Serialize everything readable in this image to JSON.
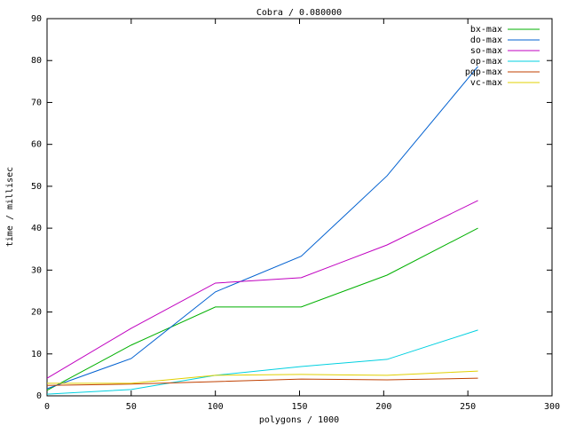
{
  "chart_data": {
    "type": "line",
    "title": "Cobra / 0.080000",
    "x_label": "polygons / 1000",
    "y_label": "time / millisec",
    "x": [
      0,
      50,
      100,
      151,
      202,
      256
    ],
    "series": [
      {
        "name": "bx-max",
        "color": "#00b000",
        "values": [
          1.3,
          12.1,
          21.2,
          21.2,
          28.8,
          40.0
        ]
      },
      {
        "name": "do-max",
        "color": "#0060d0",
        "values": [
          1.7,
          8.9,
          24.8,
          33.3,
          52.5,
          78.6
        ]
      },
      {
        "name": "so-max",
        "color": "#c000c0",
        "values": [
          4.2,
          16.1,
          26.9,
          28.2,
          36.0,
          46.6
        ]
      },
      {
        "name": "op-max",
        "color": "#00d0e0",
        "values": [
          0.4,
          1.5,
          4.9,
          7.0,
          8.7,
          15.7
        ]
      },
      {
        "name": "pqp-max",
        "color": "#c04000",
        "values": [
          2.5,
          2.8,
          3.4,
          4.0,
          3.8,
          4.2
        ]
      },
      {
        "name": "vc-max",
        "color": "#e0d000",
        "values": [
          3.0,
          3.0,
          4.9,
          5.1,
          4.9,
          5.9
        ]
      }
    ],
    "xlim": [
      0,
      300
    ],
    "xticks": [
      0,
      50,
      100,
      150,
      200,
      250,
      300
    ],
    "ylim": [
      0,
      90
    ],
    "yticks": [
      0,
      10,
      20,
      30,
      40,
      50,
      60,
      70,
      80,
      90
    ],
    "grid": false,
    "legend": "top-right"
  }
}
